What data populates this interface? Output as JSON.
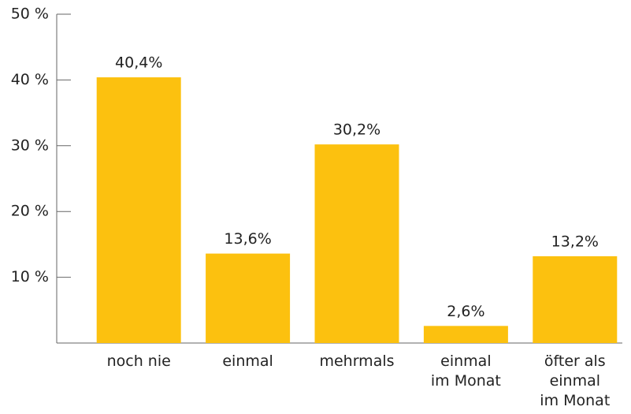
{
  "chart_data": {
    "type": "bar",
    "categories": [
      "noch nie",
      "einmal",
      "mehrmals",
      "einmal\nim Monat",
      "öfter als\neinmal\nim Monat"
    ],
    "values": [
      40.4,
      13.6,
      30.2,
      2.6,
      13.2
    ],
    "value_labels": [
      "40,4%",
      "13,6%",
      "30,2%",
      "2,6%",
      "13,2%"
    ],
    "color": "#fcc10f",
    "ylim": [
      0,
      50
    ],
    "yticks": [
      {
        "value": 10,
        "label": "10 %"
      },
      {
        "value": 20,
        "label": "20 %"
      },
      {
        "value": 30,
        "label": "30 %"
      },
      {
        "value": 40,
        "label": "40 %"
      },
      {
        "value": 50,
        "label": "50 %"
      }
    ]
  }
}
